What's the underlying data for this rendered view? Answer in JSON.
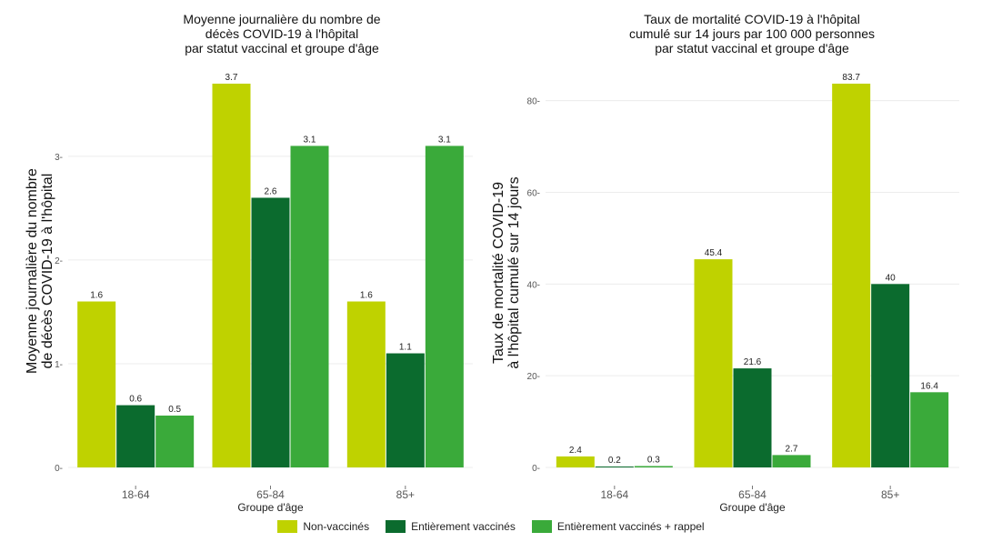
{
  "colors": {
    "non_vaccines": "#bfd200",
    "entierement": "#0b6b2e",
    "rappel": "#3aaa3a",
    "grid": "#ececec",
    "axis_text": "#555555"
  },
  "legend": [
    {
      "key": "non_vaccines",
      "label": "Non-vaccinés"
    },
    {
      "key": "entierement",
      "label": "Entièrement vaccinés"
    },
    {
      "key": "rappel",
      "label": "Entièrement vaccinés + rappel"
    }
  ],
  "chart_data": [
    {
      "type": "bar",
      "title": [
        "Moyenne journalière du nombre de",
        "décès COVID-19 à l'hôpital",
        "par statut vaccinal et groupe d'âge"
      ],
      "xlabel": "Groupe d'âge",
      "ylabel": [
        "Moyenne journalière du nombre",
        "de décès COVID-19 à l'hôpital"
      ],
      "categories": [
        "18-64",
        "65-84",
        "85+"
      ],
      "ylim": [
        0,
        3.7
      ],
      "yticks": [
        0,
        1,
        2,
        3
      ],
      "series": [
        {
          "name": "Non-vaccinés",
          "color_key": "non_vaccines",
          "values": [
            1.6,
            3.7,
            1.6
          ],
          "labels": [
            "1.6",
            "3.7",
            "1.6"
          ]
        },
        {
          "name": "Entièrement vaccinés",
          "color_key": "entierement",
          "values": [
            0.6,
            2.6,
            1.1
          ],
          "labels": [
            "0.6",
            "2.6",
            "1.1"
          ]
        },
        {
          "name": "Entièrement vaccinés + rappel",
          "color_key": "rappel",
          "values": [
            0.5,
            3.1,
            3.1
          ],
          "labels": [
            "0.5",
            "3.1",
            "3.1"
          ]
        }
      ]
    },
    {
      "type": "bar",
      "title": [
        "Taux de mortalité COVID-19 à l'hôpital",
        "cumulé sur 14 jours par 100 000 personnes",
        "par statut vaccinal et groupe d'âge"
      ],
      "xlabel": "Groupe d'âge",
      "ylabel": [
        "Taux de mortalité COVID-19",
        "à l'hôpital cumulé sur 14 jours"
      ],
      "categories": [
        "18-64",
        "65-84",
        "85+"
      ],
      "ylim": [
        0,
        83.7
      ],
      "yticks": [
        0,
        20,
        40,
        60,
        80
      ],
      "series": [
        {
          "name": "Non-vaccinés",
          "color_key": "non_vaccines",
          "values": [
            2.4,
            45.4,
            83.7
          ],
          "labels": [
            "2.4",
            "45.4",
            "83.7"
          ]
        },
        {
          "name": "Entièrement vaccinés",
          "color_key": "entierement",
          "values": [
            0.2,
            21.6,
            40
          ],
          "labels": [
            "0.2",
            "21.6",
            "40"
          ]
        },
        {
          "name": "Entièrement vaccinés + rappel",
          "color_key": "rappel",
          "values": [
            0.3,
            2.7,
            16.4
          ],
          "labels": [
            "0.3",
            "2.7",
            "16.4"
          ]
        }
      ]
    }
  ]
}
